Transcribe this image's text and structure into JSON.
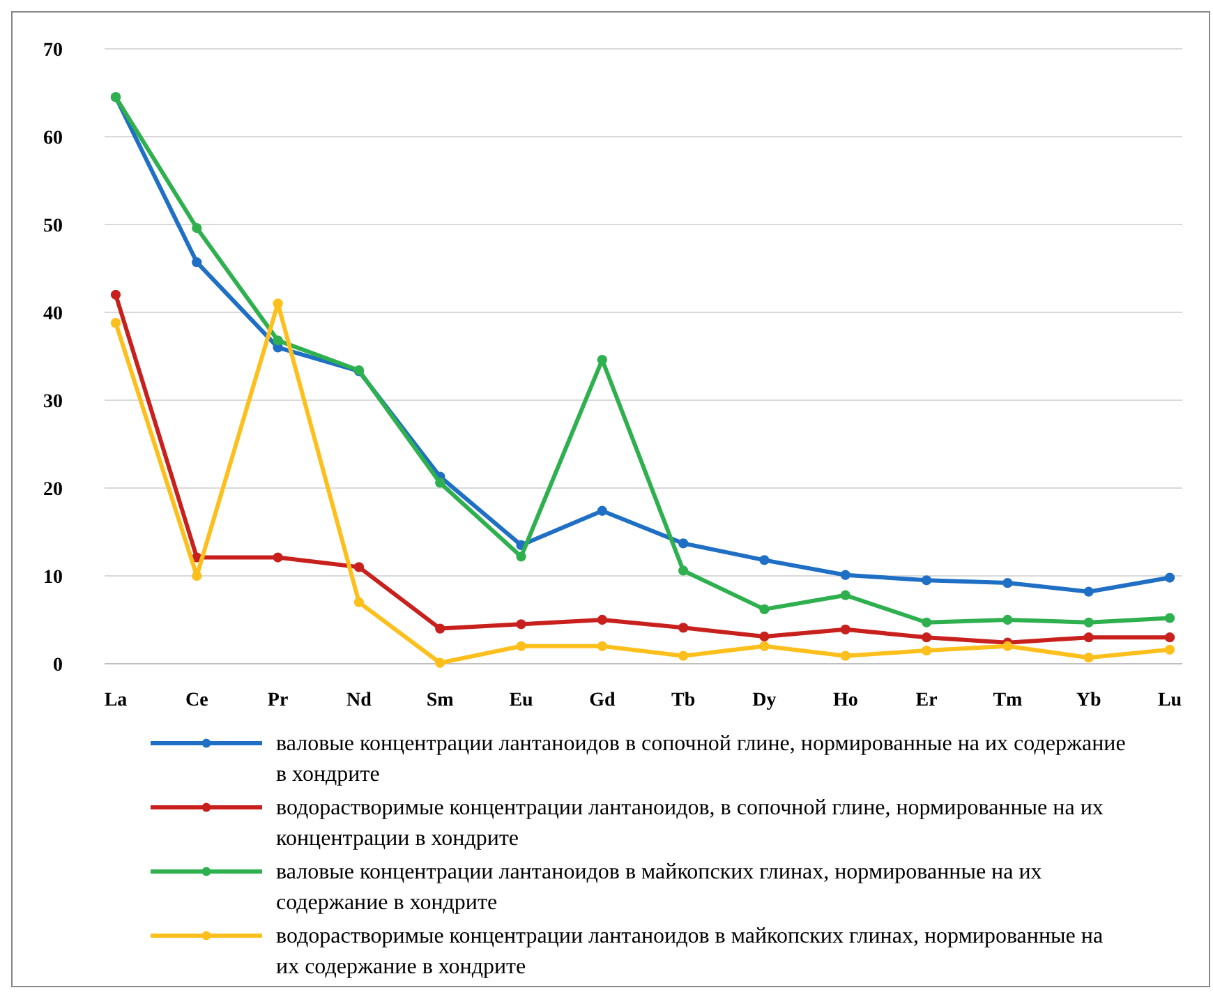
{
  "chart_data": {
    "type": "line",
    "categories": [
      "La",
      "Ce",
      "Pr",
      "Nd",
      "Sm",
      "Eu",
      "Gd",
      "Tb",
      "Dy",
      "Ho",
      "Er",
      "Tm",
      "Yb",
      "Lu"
    ],
    "series": [
      {
        "name": "валовые концентрации лантаноидов в сопочной глине, нормированные на их содержание в хондрите",
        "color": "#1f6fc5",
        "values": [
          64.5,
          45.7,
          36,
          33.3,
          21.3,
          13.5,
          17.4,
          13.7,
          11.8,
          10.1,
          9.5,
          9.2,
          8.2,
          9.8
        ]
      },
      {
        "name": "водорастворимые концентрации лантаноидов, в сопочной глине, нормированные на их концентрации в хондрите",
        "color": "#c8211d",
        "values": [
          42,
          12.1,
          12.1,
          11,
          4,
          4.5,
          5,
          4.1,
          3.1,
          3.9,
          3,
          2.4,
          3,
          3
        ]
      },
      {
        "name": "валовые концентрации лантаноидов в майкопских глинах, нормированные на их содержание в хондрите",
        "color": "#2fb04f",
        "values": [
          64.5,
          49.6,
          36.8,
          33.4,
          20.6,
          12.2,
          34.6,
          10.6,
          6.2,
          7.8,
          4.7,
          5,
          4.7,
          5.2
        ]
      },
      {
        "name": "водорастворимые концентрации лантаноидов в майкопских глинах, нормированные на их содержание в хондрите",
        "color": "#fdbf1c",
        "values": [
          38.8,
          10,
          41,
          7,
          0.1,
          2,
          2,
          0.9,
          2,
          0.9,
          1.5,
          2,
          0.7,
          1.6
        ]
      }
    ],
    "ylim": [
      0,
      70
    ],
    "yticks": [
      0,
      10,
      20,
      30,
      40,
      50,
      60,
      70
    ],
    "grid": "y",
    "legend": "bottom",
    "marker": "circle",
    "line_style": "solid"
  }
}
